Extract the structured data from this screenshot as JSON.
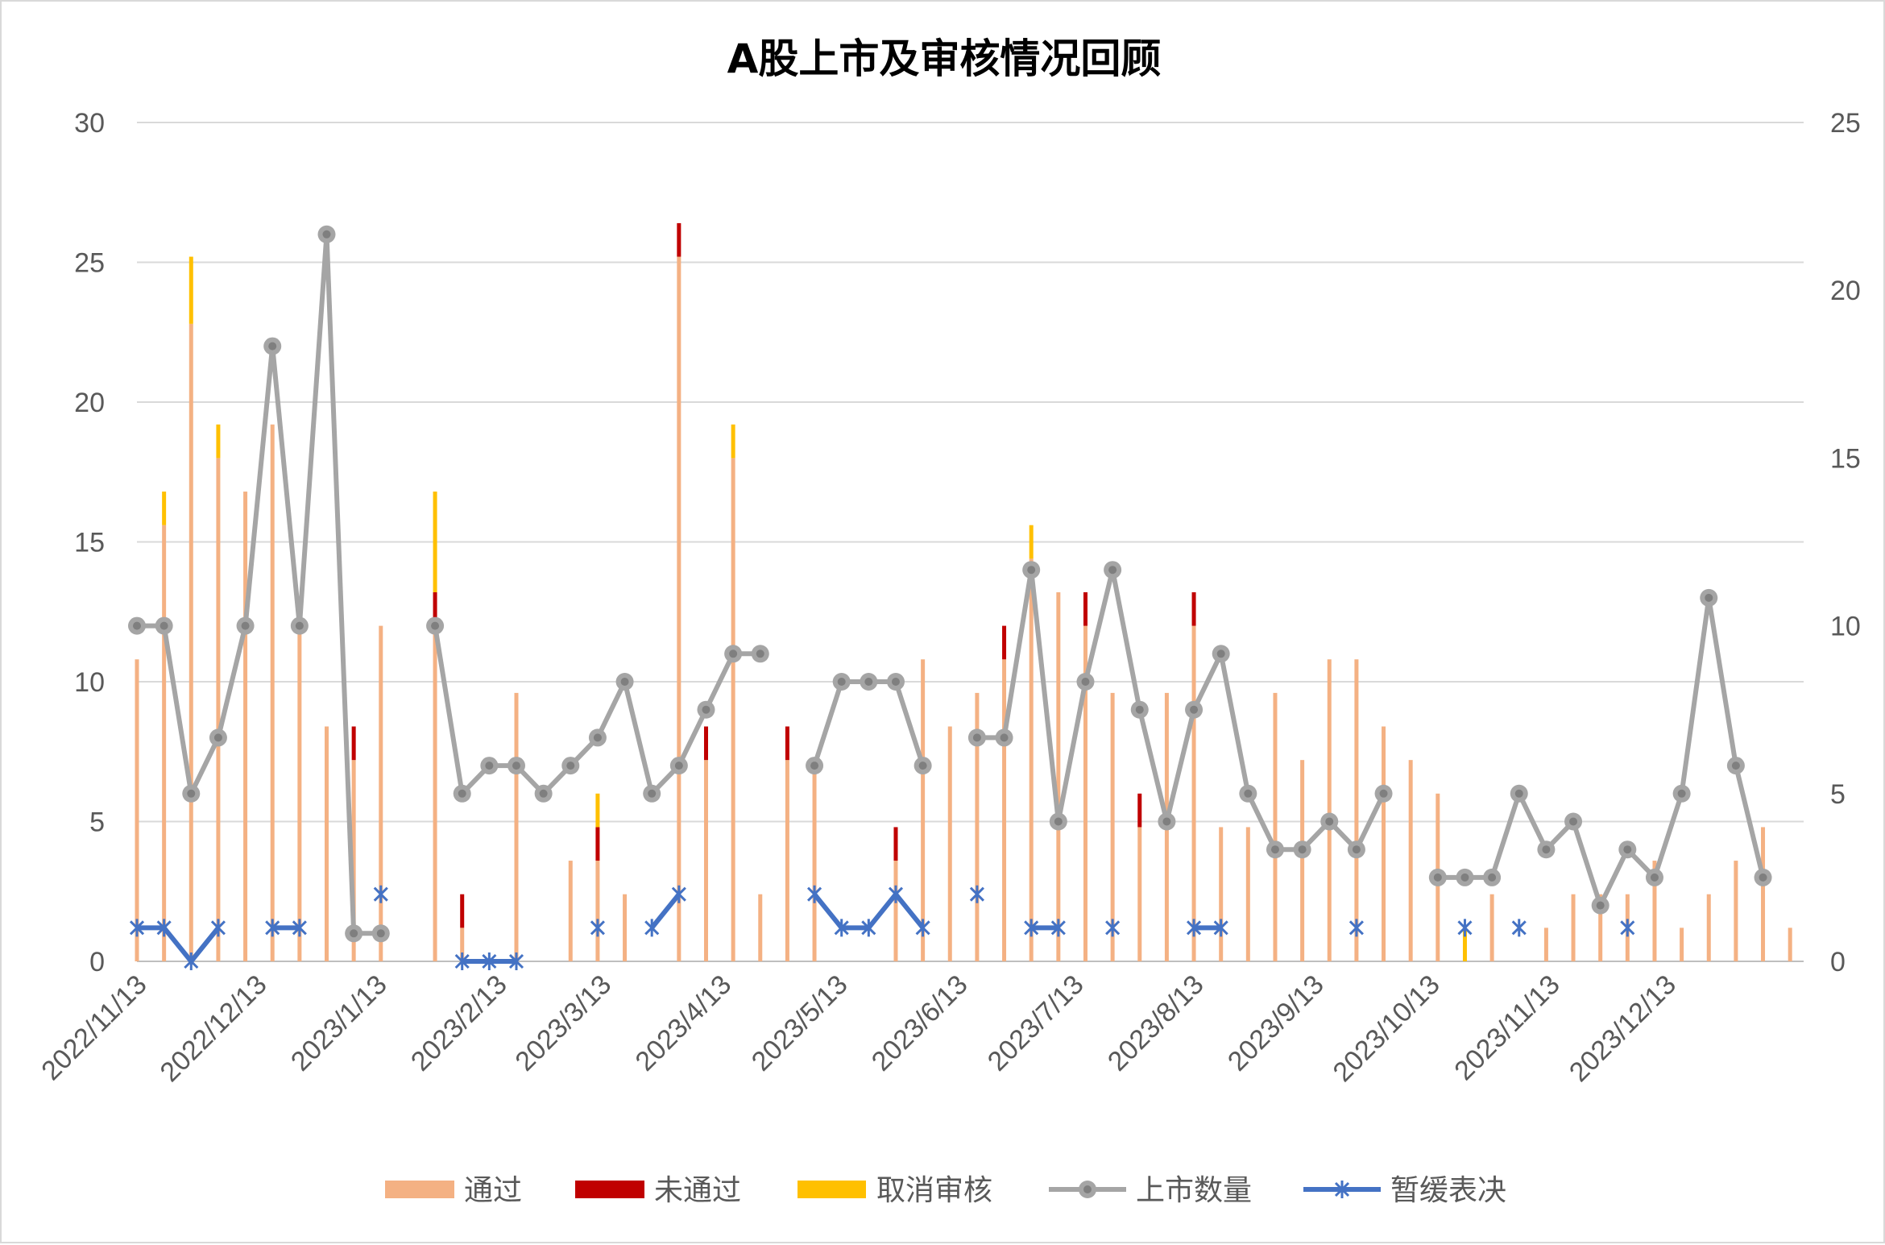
{
  "chart_data": {
    "type": "bar",
    "title": "A股上市及审核情况回顾",
    "x_tick_labels": [
      "2022/11/13",
      "2022/12/13",
      "2023/1/13",
      "2023/2/13",
      "2023/3/13",
      "2023/4/13",
      "2023/5/13",
      "2023/6/13",
      "2023/7/13",
      "2023/8/13",
      "2023/9/13",
      "2023/10/13",
      "2023/11/13",
      "2023/12/13"
    ],
    "x_tick_positions": [
      0,
      4.43,
      8.86,
      13.29,
      17.14,
      21.57,
      25.86,
      30.29,
      34.57,
      39,
      43.43,
      47.71,
      52.14,
      56.43
    ],
    "left_axis": {
      "min": 0,
      "max": 30,
      "step": 5,
      "ticks": [
        "0",
        "5",
        "10",
        "15",
        "20",
        "25",
        "30"
      ]
    },
    "right_axis": {
      "min": 0,
      "max": 25,
      "step": 5,
      "ticks": [
        "0",
        "5",
        "10",
        "15",
        "20",
        "25"
      ]
    },
    "grid": true,
    "legend_position": "bottom",
    "colors": {
      "passed": "#F4B183",
      "failed": "#C00000",
      "cancelled": "#FFC000",
      "listed": "#A5A5A5",
      "deferred": "#4472C4"
    },
    "series": [
      {
        "name": "通过",
        "type": "stacked-bar",
        "axis": "right",
        "values": [
          9,
          13,
          19,
          15,
          14,
          16,
          10,
          7,
          6,
          10,
          0,
          10,
          1,
          0,
          8,
          0,
          3,
          3,
          2,
          0,
          21,
          6,
          15,
          2,
          6,
          6,
          0,
          0,
          3,
          9,
          7,
          8,
          9,
          12,
          11,
          10,
          8,
          4,
          8,
          10,
          4,
          4,
          8,
          6,
          9,
          9,
          7,
          6,
          5,
          0,
          2,
          0,
          1,
          2,
          2,
          2,
          3,
          1,
          2,
          3,
          4,
          1
        ]
      },
      {
        "name": "未通过",
        "type": "stacked-bar",
        "axis": "right",
        "values": [
          0,
          0,
          0,
          0,
          0,
          0,
          0,
          0,
          1,
          0,
          0,
          1,
          1,
          0,
          0,
          0,
          0,
          1,
          0,
          0,
          1,
          1,
          0,
          0,
          1,
          0,
          0,
          0,
          1,
          0,
          0,
          0,
          1,
          0,
          0,
          1,
          0,
          1,
          0,
          1,
          0,
          0,
          0,
          0,
          0,
          0,
          0,
          0,
          0,
          0,
          0,
          0,
          0,
          0,
          0,
          0,
          0,
          0,
          0,
          0,
          0,
          0
        ]
      },
      {
        "name": "取消审核",
        "type": "stacked-bar",
        "axis": "right",
        "values": [
          0,
          1,
          2,
          1,
          0,
          0,
          0,
          0,
          0,
          0,
          0,
          3,
          0,
          0,
          0,
          0,
          0,
          1,
          0,
          0,
          0,
          0,
          1,
          0,
          0,
          0,
          0,
          0,
          0,
          0,
          0,
          0,
          0,
          1,
          0,
          0,
          0,
          0,
          0,
          0,
          0,
          0,
          0,
          0,
          0,
          0,
          0,
          0,
          0,
          1,
          0,
          0,
          0,
          0,
          0,
          0,
          0,
          0,
          0,
          0,
          0,
          0
        ]
      },
      {
        "name": "上市数量",
        "type": "line",
        "axis": "left",
        "points": [
          [
            0,
            12
          ],
          [
            1,
            12
          ],
          [
            2,
            6
          ],
          [
            3,
            8
          ],
          [
            4,
            12
          ],
          [
            5,
            22
          ],
          [
            6,
            12
          ],
          [
            7,
            26
          ],
          [
            8,
            1
          ],
          [
            9,
            1
          ],
          [
            11,
            12
          ],
          [
            12,
            6
          ],
          [
            13,
            7
          ],
          [
            14,
            7
          ],
          [
            15,
            6
          ],
          [
            16,
            7
          ],
          [
            17,
            8
          ],
          [
            18,
            10
          ],
          [
            19,
            6
          ],
          [
            20,
            7
          ],
          [
            21,
            9
          ],
          [
            22,
            11
          ],
          [
            23,
            11
          ],
          [
            25,
            7
          ],
          [
            26,
            10
          ],
          [
            27,
            10
          ],
          [
            28,
            10
          ],
          [
            29,
            7
          ],
          [
            31,
            8
          ],
          [
            32,
            8
          ],
          [
            33,
            14
          ],
          [
            34,
            5
          ],
          [
            35,
            10
          ],
          [
            36,
            14
          ],
          [
            37,
            9
          ],
          [
            38,
            5
          ],
          [
            39,
            9
          ],
          [
            40,
            11
          ],
          [
            41,
            6
          ],
          [
            42,
            4
          ],
          [
            43,
            4
          ],
          [
            44,
            5
          ],
          [
            45,
            4
          ],
          [
            46,
            6
          ],
          [
            48,
            3
          ],
          [
            49,
            3
          ],
          [
            50,
            3
          ],
          [
            51,
            6
          ],
          [
            52,
            4
          ],
          [
            53,
            5
          ],
          [
            54,
            2
          ],
          [
            55,
            4
          ],
          [
            56,
            3
          ],
          [
            57,
            6
          ],
          [
            58,
            13
          ],
          [
            59,
            7
          ],
          [
            60,
            3
          ]
        ]
      },
      {
        "name": "暂缓表决",
        "type": "line",
        "axis": "right",
        "points": [
          [
            0,
            1
          ],
          [
            1,
            1
          ],
          [
            2,
            0
          ],
          [
            3,
            1
          ],
          [
            5,
            1
          ],
          [
            6,
            1
          ],
          [
            9,
            2
          ],
          [
            12,
            0
          ],
          [
            13,
            0
          ],
          [
            14,
            0
          ],
          [
            17,
            1
          ],
          [
            19,
            1
          ],
          [
            20,
            2
          ],
          [
            25,
            2
          ],
          [
            26,
            1
          ],
          [
            27,
            1
          ],
          [
            28,
            2
          ],
          [
            29,
            1
          ],
          [
            31,
            2
          ],
          [
            33,
            1
          ],
          [
            34,
            1
          ],
          [
            36,
            1
          ],
          [
            39,
            1
          ],
          [
            40,
            1
          ],
          [
            45,
            1
          ],
          [
            49,
            1
          ],
          [
            51,
            1
          ],
          [
            55,
            1
          ]
        ]
      }
    ]
  }
}
